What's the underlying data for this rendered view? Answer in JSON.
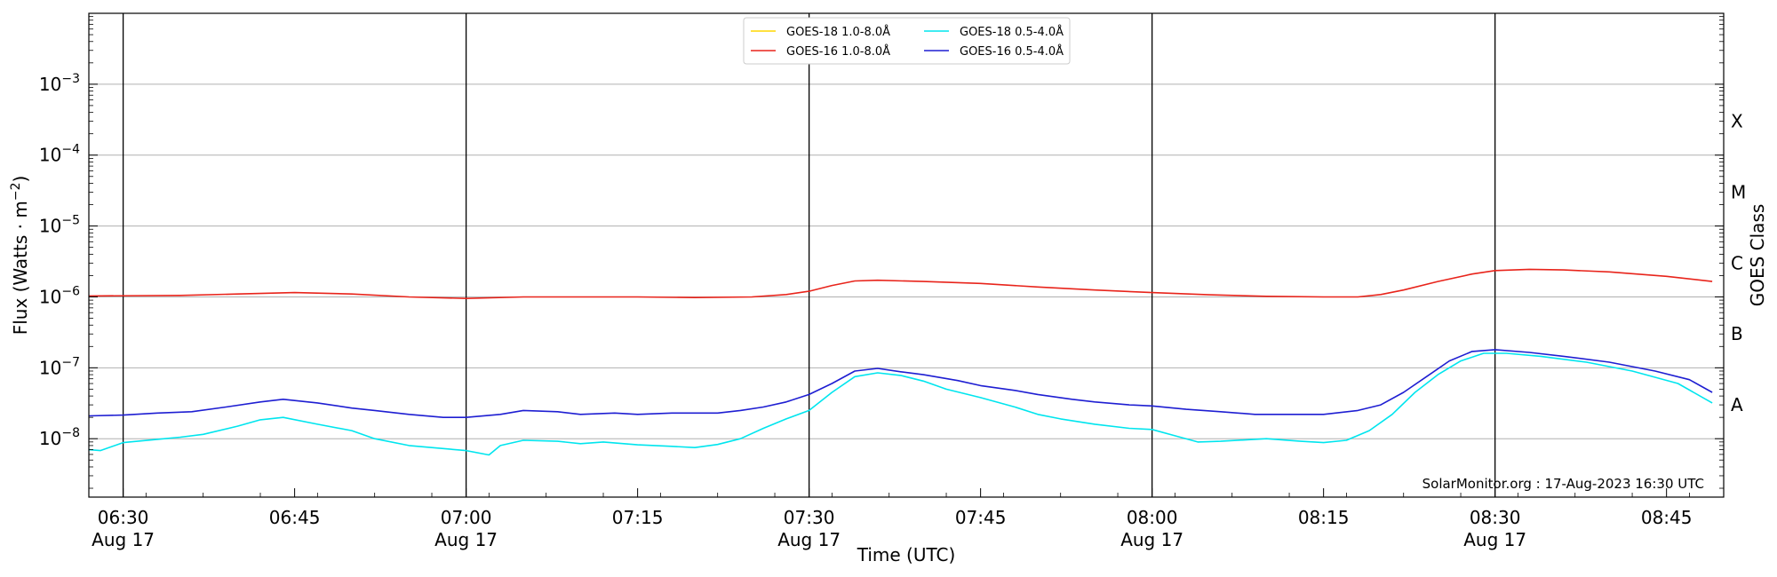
{
  "chart_data": {
    "type": "line",
    "xlabel": "Time (UTC)",
    "ylabel": "Flux (Watts · m⁻²)",
    "right_label": "GOES Class",
    "credit": "SolarMonitor.org : 17-Aug-2023 16:30 UTC",
    "xlim": [
      "06:27",
      "08:50"
    ],
    "ylim": [
      1.5e-09,
      0.01
    ],
    "yscale": "log",
    "grid": "horizontal",
    "legend_position": "top-center",
    "yticks": [
      {
        "value": 1e-08,
        "base": "10",
        "exp": "−8"
      },
      {
        "value": 1e-07,
        "base": "10",
        "exp": "−7"
      },
      {
        "value": 1e-06,
        "base": "10",
        "exp": "−6"
      },
      {
        "value": 1e-05,
        "base": "10",
        "exp": "−5"
      },
      {
        "value": 0.0001,
        "base": "10",
        "exp": "−4"
      },
      {
        "value": 0.001,
        "base": "10",
        "exp": "−3"
      }
    ],
    "xticks": [
      {
        "time": "06:30",
        "label": "06:30",
        "sublabel": "Aug 17",
        "major": true
      },
      {
        "time": "06:45",
        "label": "06:45",
        "sublabel": "",
        "major": false
      },
      {
        "time": "07:00",
        "label": "07:00",
        "sublabel": "Aug 17",
        "major": true
      },
      {
        "time": "07:15",
        "label": "07:15",
        "sublabel": "",
        "major": false
      },
      {
        "time": "07:30",
        "label": "07:30",
        "sublabel": "Aug 17",
        "major": true
      },
      {
        "time": "07:45",
        "label": "07:45",
        "sublabel": "",
        "major": false
      },
      {
        "time": "08:00",
        "label": "08:00",
        "sublabel": "Aug 17",
        "major": true
      },
      {
        "time": "08:15",
        "label": "08:15",
        "sublabel": "",
        "major": false
      },
      {
        "time": "08:30",
        "label": "08:30",
        "sublabel": "Aug 17",
        "major": true
      },
      {
        "time": "08:45",
        "label": "08:45",
        "sublabel": "",
        "major": false
      }
    ],
    "goes_classes": [
      {
        "label": "A",
        "value": 3e-08
      },
      {
        "label": "B",
        "value": 3e-07
      },
      {
        "label": "C",
        "value": 3e-06
      },
      {
        "label": "M",
        "value": 3e-05
      },
      {
        "label": "X",
        "value": 0.0003
      }
    ],
    "series": [
      {
        "name": "GOES-18 1.0-8.0Å",
        "color": "#FFD700",
        "x": [],
        "y": []
      },
      {
        "name": "GOES-16 1.0-8.0Å",
        "color": "#E8241B",
        "x": [
          "06:27",
          "06:35",
          "06:40",
          "06:45",
          "06:50",
          "06:55",
          "07:00",
          "07:05",
          "07:10",
          "07:15",
          "07:20",
          "07:25",
          "07:28",
          "07:30",
          "07:32",
          "07:34",
          "07:36",
          "07:40",
          "07:45",
          "07:50",
          "07:55",
          "08:00",
          "08:05",
          "08:10",
          "08:15",
          "08:18",
          "08:20",
          "08:22",
          "08:25",
          "08:28",
          "08:30",
          "08:33",
          "08:36",
          "08:40",
          "08:45",
          "08:49"
        ],
        "y": [
          1.03e-06,
          1.05e-06,
          1.1e-06,
          1.15e-06,
          1.1e-06,
          1e-06,
          9.5e-07,
          1e-06,
          1e-06,
          1e-06,
          9.8e-07,
          1e-06,
          1.08e-06,
          1.2e-06,
          1.45e-06,
          1.68e-06,
          1.72e-06,
          1.65e-06,
          1.55e-06,
          1.38e-06,
          1.25e-06,
          1.15e-06,
          1.07e-06,
          1.02e-06,
          1e-06,
          1e-06,
          1.08e-06,
          1.25e-06,
          1.65e-06,
          2.1e-06,
          2.35e-06,
          2.45e-06,
          2.4e-06,
          2.25e-06,
          1.95e-06,
          1.65e-06
        ]
      },
      {
        "name": "GOES-18 0.5-4.0Å",
        "color": "#00E5EE",
        "x": [
          "06:27",
          "06:28",
          "06:30",
          "06:33",
          "06:35",
          "06:37",
          "06:40",
          "06:42",
          "06:44",
          "06:47",
          "06:50",
          "06:52",
          "06:55",
          "06:57",
          "07:00",
          "07:02",
          "07:03",
          "07:05",
          "07:08",
          "07:10",
          "07:12",
          "07:15",
          "07:18",
          "07:20",
          "07:22",
          "07:24",
          "07:26",
          "07:28",
          "07:30",
          "07:32",
          "07:34",
          "07:36",
          "07:38",
          "07:40",
          "07:42",
          "07:45",
          "07:48",
          "07:50",
          "07:52",
          "07:55",
          "07:58",
          "08:00",
          "08:02",
          "08:04",
          "08:06",
          "08:10",
          "08:13",
          "08:15",
          "08:17",
          "08:19",
          "08:21",
          "08:23",
          "08:25",
          "08:27",
          "08:29",
          "08:31",
          "08:34",
          "08:38",
          "08:42",
          "08:46",
          "08:49"
        ],
        "y": [
          7e-09,
          6.8e-09,
          8.8e-09,
          9.8e-09,
          1.05e-08,
          1.15e-08,
          1.5e-08,
          1.85e-08,
          2e-08,
          1.6e-08,
          1.3e-08,
          1e-08,
          8e-09,
          7.5e-09,
          6.8e-09,
          5.9e-09,
          8e-09,
          9.5e-09,
          9.2e-09,
          8.5e-09,
          9e-09,
          8.2e-09,
          7.8e-09,
          7.5e-09,
          8.3e-09,
          1e-08,
          1.4e-08,
          1.9e-08,
          2.5e-08,
          4.5e-08,
          7.5e-08,
          8.5e-08,
          7.8e-08,
          6.5e-08,
          5e-08,
          3.8e-08,
          2.8e-08,
          2.2e-08,
          1.9e-08,
          1.6e-08,
          1.4e-08,
          1.35e-08,
          1.1e-08,
          9e-09,
          9.2e-09,
          1e-08,
          9.2e-09,
          8.8e-09,
          9.5e-09,
          1.3e-08,
          2.2e-08,
          4.5e-08,
          8e-08,
          1.25e-07,
          1.6e-07,
          1.6e-07,
          1.45e-07,
          1.2e-07,
          9e-08,
          6e-08,
          3.2e-08
        ]
      },
      {
        "name": "GOES-16 0.5-4.0Å",
        "color": "#1E1ED2",
        "x": [
          "06:27",
          "06:30",
          "06:33",
          "06:36",
          "06:39",
          "06:42",
          "06:44",
          "06:47",
          "06:50",
          "06:52",
          "06:55",
          "06:58",
          "07:00",
          "07:03",
          "07:05",
          "07:08",
          "07:10",
          "07:13",
          "07:15",
          "07:18",
          "07:20",
          "07:22",
          "07:24",
          "07:26",
          "07:28",
          "07:30",
          "07:32",
          "07:34",
          "07:36",
          "07:38",
          "07:40",
          "07:43",
          "07:45",
          "07:48",
          "07:50",
          "07:53",
          "07:55",
          "07:58",
          "08:00",
          "08:03",
          "08:06",
          "08:09",
          "08:12",
          "08:15",
          "08:18",
          "08:20",
          "08:22",
          "08:24",
          "08:26",
          "08:28",
          "08:30",
          "08:33",
          "08:36",
          "08:40",
          "08:44",
          "08:47",
          "08:49"
        ],
        "y": [
          2.1e-08,
          2.15e-08,
          2.3e-08,
          2.4e-08,
          2.8e-08,
          3.3e-08,
          3.6e-08,
          3.2e-08,
          2.7e-08,
          2.5e-08,
          2.2e-08,
          2e-08,
          2e-08,
          2.2e-08,
          2.5e-08,
          2.4e-08,
          2.2e-08,
          2.3e-08,
          2.2e-08,
          2.3e-08,
          2.3e-08,
          2.3e-08,
          2.5e-08,
          2.8e-08,
          3.3e-08,
          4.2e-08,
          6e-08,
          9e-08,
          9.8e-08,
          8.8e-08,
          8e-08,
          6.6e-08,
          5.6e-08,
          4.8e-08,
          4.2e-08,
          3.6e-08,
          3.3e-08,
          3e-08,
          2.9e-08,
          2.6e-08,
          2.4e-08,
          2.2e-08,
          2.2e-08,
          2.2e-08,
          2.5e-08,
          3e-08,
          4.5e-08,
          7.5e-08,
          1.25e-07,
          1.7e-07,
          1.8e-07,
          1.65e-07,
          1.45e-07,
          1.2e-07,
          9e-08,
          6.8e-08,
          4.5e-08
        ]
      }
    ]
  }
}
